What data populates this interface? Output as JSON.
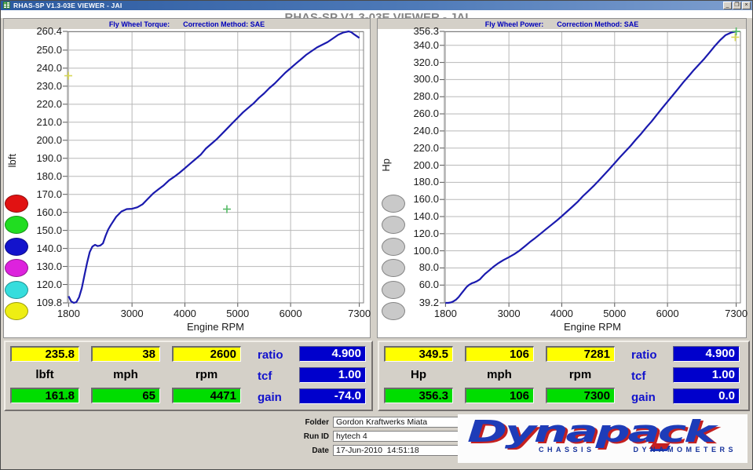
{
  "window": {
    "title": "RHAS-SP V1.3-03E VIEWER - JAI",
    "minimize_glyph": "_",
    "maximize_glyph": "❐",
    "close_glyph": "×"
  },
  "header": {
    "title": "RHAS-SP V1.3-03E VIEWER - JAI"
  },
  "colors": {
    "curve": "#1a1aae",
    "grid": "#b8b8b8",
    "plot_border": "#808080",
    "cursor_box_bg": "#ffff00",
    "live_box_bg": "#00dd00",
    "param_box_bg": "#0000cc",
    "param_label_text": "#1111cc",
    "chart_header_text": "#0000bb",
    "titlebar_blue": "#3a64a8",
    "logo_blue": "#1e3cb8",
    "logo_red": "#c42020",
    "marker_yellow": "#d8d855",
    "marker_green": "#55bb66",
    "channel_button_colors": [
      "#e11212",
      "#21dd21",
      "#1313cc",
      "#dd22dd",
      "#35dddd",
      "#eeee13"
    ],
    "disabled_button_gray": "#c9c9c9"
  },
  "chart_data": [
    {
      "type": "line",
      "title": "Fly Wheel Torque",
      "header_left": "Fly Wheel Torque:",
      "header_right": "Correction Method: SAE",
      "ylabel": "lbft",
      "xlabel": "Engine RPM",
      "xlim": [
        1780,
        7380
      ],
      "ylim": [
        109.8,
        260.4
      ],
      "x_ticks": [
        1800,
        3000,
        4000,
        5000,
        6000,
        7300
      ],
      "y_ticks": [
        260.4,
        250,
        240,
        230,
        220,
        210,
        200,
        190,
        180,
        170,
        160,
        150,
        140,
        130,
        120,
        109.8
      ],
      "grid": true,
      "legend_buttons": [
        "#e11212",
        "#21dd21",
        "#1313cc",
        "#dd22dd",
        "#35dddd",
        "#eeee13"
      ],
      "series": [
        {
          "name": "torque",
          "color": "#1a1aae",
          "points": [
            [
              1800,
              113.5
            ],
            [
              1850,
              110.6
            ],
            [
              1900,
              109.8
            ],
            [
              1950,
              110.3
            ],
            [
              2000,
              113
            ],
            [
              2050,
              118
            ],
            [
              2100,
              125
            ],
            [
              2150,
              132
            ],
            [
              2200,
              138
            ],
            [
              2250,
              141
            ],
            [
              2300,
              142
            ],
            [
              2350,
              141.3
            ],
            [
              2400,
              141.6
            ],
            [
              2450,
              142.8
            ],
            [
              2500,
              147
            ],
            [
              2550,
              150.5
            ],
            [
              2600,
              153
            ],
            [
              2700,
              157.5
            ],
            [
              2800,
              160.5
            ],
            [
              2900,
              161.8
            ],
            [
              3000,
              162
            ],
            [
              3100,
              162.8
            ],
            [
              3200,
              164.5
            ],
            [
              3300,
              167.5
            ],
            [
              3400,
              170.5
            ],
            [
              3500,
              172.8
            ],
            [
              3600,
              175
            ],
            [
              3700,
              177.8
            ],
            [
              3800,
              179.8
            ],
            [
              3900,
              182
            ],
            [
              4000,
              184.5
            ],
            [
              4100,
              187
            ],
            [
              4200,
              189.5
            ],
            [
              4300,
              192
            ],
            [
              4400,
              195.5
            ],
            [
              4500,
              198
            ],
            [
              4600,
              200.5
            ],
            [
              4700,
              203.5
            ],
            [
              4800,
              206.5
            ],
            [
              4900,
              209.5
            ],
            [
              5000,
              212.5
            ],
            [
              5100,
              215.5
            ],
            [
              5200,
              218
            ],
            [
              5300,
              220.5
            ],
            [
              5400,
              223.5
            ],
            [
              5500,
              226
            ],
            [
              5600,
              229
            ],
            [
              5700,
              231.5
            ],
            [
              5800,
              234.5
            ],
            [
              5900,
              237.5
            ],
            [
              6000,
              240
            ],
            [
              6100,
              242.5
            ],
            [
              6200,
              245
            ],
            [
              6300,
              247.5
            ],
            [
              6400,
              249.5
            ],
            [
              6500,
              251.5
            ],
            [
              6600,
              253
            ],
            [
              6700,
              254.5
            ],
            [
              6800,
              256.5
            ],
            [
              6900,
              258.5
            ],
            [
              7000,
              259.8
            ],
            [
              7100,
              260.4
            ],
            [
              7150,
              259.9
            ],
            [
              7200,
              258.8
            ],
            [
              7300,
              256.8
            ]
          ]
        }
      ],
      "markers": [
        {
          "color": "#d8d855",
          "x": 1795,
          "y": 235.8
        },
        {
          "color": "#55bb66",
          "x": 4795,
          "y": 161.8
        }
      ]
    },
    {
      "type": "line",
      "title": "Fly Wheel Power",
      "header_left": "Fly Wheel Power:",
      "header_right": "Correction Method: SAE",
      "ylabel": "Hp",
      "xlabel": "Engine RPM",
      "xlim": [
        1780,
        7380
      ],
      "ylim": [
        39.2,
        356.3
      ],
      "x_ticks": [
        1800,
        3000,
        4000,
        5000,
        6000,
        7300
      ],
      "y_ticks": [
        356.3,
        340,
        320,
        300,
        280,
        260,
        240,
        220,
        200,
        180,
        160,
        140,
        120,
        100,
        80,
        60,
        39.2
      ],
      "grid": true,
      "legend_buttons": [
        "#c9c9c9",
        "#c9c9c9",
        "#c9c9c9",
        "#c9c9c9",
        "#c9c9c9",
        "#c9c9c9"
      ],
      "series": [
        {
          "name": "power",
          "color": "#1a1aae",
          "points": [
            [
              1800,
              39.2
            ],
            [
              1850,
              39.2
            ],
            [
              1900,
              39.7
            ],
            [
              1950,
              40.9
            ],
            [
              2000,
              43
            ],
            [
              2050,
              46.1
            ],
            [
              2100,
              50
            ],
            [
              2150,
              54
            ],
            [
              2200,
              57.8
            ],
            [
              2250,
              60.4
            ],
            [
              2300,
              62.2
            ],
            [
              2350,
              63.2
            ],
            [
              2400,
              64.7
            ],
            [
              2450,
              66.6
            ],
            [
              2500,
              70
            ],
            [
              2550,
              73.1
            ],
            [
              2600,
              75.7
            ],
            [
              2700,
              81
            ],
            [
              2800,
              85.6
            ],
            [
              2900,
              89.3
            ],
            [
              3000,
              92.5
            ],
            [
              3100,
              96.1
            ],
            [
              3200,
              100.2
            ],
            [
              3300,
              105.2
            ],
            [
              3400,
              110.4
            ],
            [
              3500,
              115.1
            ],
            [
              3600,
              120
            ],
            [
              3700,
              125.2
            ],
            [
              3800,
              130.1
            ],
            [
              3900,
              135.1
            ],
            [
              4000,
              140.5
            ],
            [
              4100,
              146
            ],
            [
              4200,
              151.5
            ],
            [
              4300,
              157.2
            ],
            [
              4400,
              163.8
            ],
            [
              4500,
              169.6
            ],
            [
              4600,
              175.6
            ],
            [
              4700,
              182.1
            ],
            [
              4800,
              188.7
            ],
            [
              4900,
              195.4
            ],
            [
              5000,
              202.3
            ],
            [
              5100,
              209.3
            ],
            [
              5200,
              215.8
            ],
            [
              5300,
              222.5
            ],
            [
              5400,
              229.8
            ],
            [
              5500,
              236.6
            ],
            [
              5600,
              244.2
            ],
            [
              5700,
              251.2
            ],
            [
              5800,
              259
            ],
            [
              5900,
              266.8
            ],
            [
              6000,
              274.2
            ],
            [
              6100,
              281.6
            ],
            [
              6200,
              289.2
            ],
            [
              6300,
              296.9
            ],
            [
              6400,
              304
            ],
            [
              6500,
              311.3
            ],
            [
              6600,
              317.9
            ],
            [
              6700,
              324.6
            ],
            [
              6800,
              332.1
            ],
            [
              6900,
              339.6
            ],
            [
              7000,
              346.3
            ],
            [
              7100,
              352
            ],
            [
              7200,
              354.8
            ],
            [
              7300,
              356.3
            ]
          ]
        }
      ],
      "markers": [
        {
          "color": "#d8d855",
          "x": 7281,
          "y": 349.5
        },
        {
          "color": "#55bb66",
          "x": 7300,
          "y": 356.3
        }
      ]
    }
  ],
  "readouts": [
    {
      "cursor_values": [
        "235.8",
        "38",
        "2600"
      ],
      "units": [
        "lbft",
        "mph",
        "rpm"
      ],
      "live_values": [
        "161.8",
        "65",
        "4471"
      ],
      "params": [
        {
          "label": "ratio",
          "value": "4.900"
        },
        {
          "label": "tcf",
          "value": "1.00"
        },
        {
          "label": "gain",
          "value": "-74.0"
        }
      ]
    },
    {
      "cursor_values": [
        "349.5",
        "106",
        "7281"
      ],
      "units": [
        "Hp",
        "mph",
        "rpm"
      ],
      "live_values": [
        "356.3",
        "106",
        "7300"
      ],
      "params": [
        {
          "label": "ratio",
          "value": "4.900"
        },
        {
          "label": "tcf",
          "value": "1.00"
        },
        {
          "label": "gain",
          "value": "0.0"
        }
      ]
    }
  ],
  "footer": {
    "fields": [
      {
        "label": "Folder",
        "value": "Gordon Kraftwerks Miata"
      },
      {
        "label": "Run ID",
        "value": "hytech 4"
      },
      {
        "label": "Date",
        "value": "17-Jun-2010  14:51:18"
      }
    ],
    "logo": {
      "main": "Dynapack",
      "sub_left": "CHASSIS",
      "sub_right": "DYNAMOMETERS"
    }
  }
}
